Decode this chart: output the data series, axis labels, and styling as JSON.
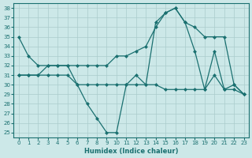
{
  "xlabel": "Humidex (Indice chaleur)",
  "bg_color": "#cce8e8",
  "grid_color": "#aacccc",
  "line_color": "#1a7070",
  "ylim": [
    24.5,
    38.5
  ],
  "xlim": [
    -0.5,
    23.5
  ],
  "line1_x": [
    0,
    1,
    2,
    3,
    4,
    5,
    6,
    7,
    8,
    9,
    10,
    11,
    12,
    13,
    14,
    15,
    16,
    17,
    18,
    19,
    20,
    21,
    22,
    23
  ],
  "line1_y": [
    35,
    33,
    32,
    32,
    32,
    32,
    32,
    32,
    32,
    32,
    33,
    33,
    33.5,
    34,
    36,
    37.5,
    38,
    36.5,
    36,
    35,
    35,
    35,
    30,
    29
  ],
  "line2_x": [
    0,
    1,
    2,
    3,
    4,
    5,
    6,
    7,
    8,
    9,
    10,
    11,
    12,
    13,
    14,
    15,
    16,
    17,
    18,
    19,
    20,
    21,
    22,
    23
  ],
  "line2_y": [
    31,
    31,
    31,
    32,
    32,
    32,
    30,
    28,
    26.5,
    25,
    25,
    30,
    31,
    30,
    36.5,
    37.5,
    38,
    36.5,
    33.5,
    29.5,
    31,
    29.5,
    30,
    29
  ],
  "line3_x": [
    0,
    1,
    2,
    3,
    4,
    5,
    6,
    7,
    8,
    9,
    10,
    11,
    12,
    13,
    14,
    15,
    16,
    17,
    18,
    19,
    20,
    21,
    22,
    23
  ],
  "line3_y": [
    31,
    31,
    31,
    31,
    31,
    31,
    30,
    30,
    30,
    30,
    30,
    30,
    30,
    30,
    30,
    29.5,
    29.5,
    29.5,
    29.5,
    29.5,
    33.5,
    29.5,
    29.5,
    29
  ]
}
